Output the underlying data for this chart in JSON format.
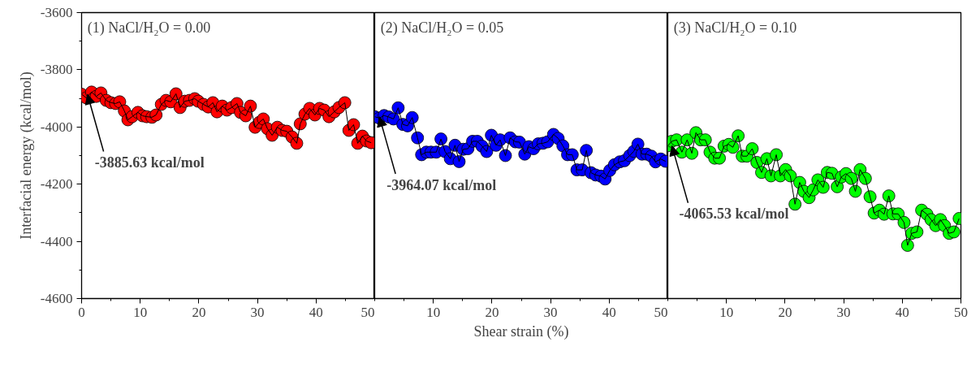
{
  "chart_data": [
    {
      "type": "line",
      "marker": "circle",
      "line_style": "solid",
      "title": "(1) NaCl/H₂O = 0.00",
      "ylabel": "Interfacial energy (kcal/mol)",
      "xlim": [
        0,
        50
      ],
      "xticks": [
        0,
        {
          "value": 5,
          "label": null
        },
        10,
        {
          "value": 15,
          "label": null
        },
        20,
        {
          "value": 25,
          "label": null
        },
        30,
        {
          "value": 35,
          "label": null
        },
        40,
        {
          "value": 45,
          "label": null
        },
        50
      ],
      "ylim": [
        -4600,
        -3600
      ],
      "yticks": [
        -4600,
        {
          "value": -4500,
          "label": null
        },
        -4400,
        {
          "value": -4300,
          "label": null
        },
        -4200,
        {
          "value": -4100,
          "label": null
        },
        -4000,
        {
          "value": -3900,
          "label": null
        },
        -3800,
        {
          "value": -3700,
          "label": null
        },
        -3600
      ],
      "series": [
        {
          "color": "#ff0000",
          "x": [
            0,
            0.8,
            1.7,
            2.5,
            3.3,
            4.2,
            5.0,
            5.8,
            6.5,
            7.3,
            7.9,
            8.6,
            9.6,
            10.4,
            11.1,
            12.0,
            12.7,
            13.6,
            14.4,
            15.2,
            16.1,
            16.8,
            17.6,
            18.4,
            19.3,
            19.9,
            20.8,
            21.6,
            22.4,
            23.1,
            24.0,
            24.8,
            25.6,
            26.5,
            27.1,
            28.0,
            28.8,
            29.6,
            30.3,
            31.0,
            31.7,
            32.5,
            33.4,
            34.2,
            35.0,
            35.9,
            36.7,
            37.3,
            38.1,
            38.9,
            39.8,
            40.6,
            41.4,
            42.2,
            43.1,
            43.9,
            44.9,
            45.6,
            46.4,
            47.1,
            47.9,
            48.6,
            49.4
          ],
          "values": [
            -3885.63,
            -3898,
            -3878,
            -3893,
            -3881,
            -3907,
            -3915,
            -3918,
            -3912,
            -3944,
            -3975,
            -3964,
            -3949,
            -3961,
            -3964,
            -3966,
            -3958,
            -3921,
            -3907,
            -3912,
            -3884,
            -3932,
            -3910,
            -3907,
            -3901,
            -3910,
            -3921,
            -3930,
            -3915,
            -3947,
            -3927,
            -3941,
            -3932,
            -3918,
            -3949,
            -3961,
            -3927,
            -4001,
            -3984,
            -3972,
            -4006,
            -4029,
            -4001,
            -4012,
            -4015,
            -4035,
            -4057,
            -3989,
            -3955,
            -3935,
            -3958,
            -3935,
            -3941,
            -3964,
            -3947,
            -3932,
            -3915,
            -4012,
            -3992,
            -4057,
            -4032,
            -4049,
            -4055
          ]
        }
      ],
      "annotations": [
        {
          "text": "-3885.63 kcal/mol",
          "x": 1,
          "y": -3885.63
        }
      ]
    },
    {
      "type": "line",
      "marker": "circle",
      "line_style": "solid",
      "title": "(2) NaCl/H₂O = 0.05",
      "xlabel": "Shear strain (%)",
      "tick_labels": "x",
      "xlim": [
        0,
        50
      ],
      "xticks": [
        {
          "value": 0,
          "label": null
        },
        {
          "value": 5,
          "label": null
        },
        10,
        {
          "value": 15,
          "label": null
        },
        20,
        {
          "value": 25,
          "label": null
        },
        30,
        {
          "value": 35,
          "label": null
        },
        40,
        {
          "value": 45,
          "label": null
        },
        50
      ],
      "ylim": [
        -4600,
        -3600
      ],
      "series": [
        {
          "color": "#0000ff",
          "x": [
            0,
            0.8,
            1.6,
            2.4,
            3.2,
            4.0,
            4.8,
            5.6,
            6.4,
            7.3,
            8.0,
            8.8,
            9.6,
            10.5,
            11.3,
            12.0,
            12.9,
            13.7,
            14.4,
            15.1,
            15.9,
            16.7,
            17.5,
            18.3,
            19.1,
            19.9,
            20.7,
            21.4,
            22.3,
            23.1,
            24.0,
            24.7,
            25.6,
            26.3,
            27.1,
            27.9,
            28.7,
            29.5,
            30.5,
            31.3,
            32.1,
            32.9,
            33.7,
            34.5,
            35.4,
            36.1,
            36.9,
            37.7,
            38.6,
            39.3,
            40.1,
            40.9,
            41.8,
            42.6,
            43.5,
            44.2,
            44.9,
            45.6,
            46.4,
            47.2,
            47.9,
            48.8,
            49.6
          ],
          "values": [
            -3964.07,
            -3969,
            -3960,
            -3965,
            -3972,
            -3933,
            -3991,
            -3996,
            -3967,
            -4038,
            -4097,
            -4088,
            -4088,
            -4088,
            -4042,
            -4086,
            -4111,
            -4064,
            -4121,
            -4078,
            -4076,
            -4050,
            -4050,
            -4067,
            -4086,
            -4029,
            -4064,
            -4045,
            -4100,
            -4038,
            -4052,
            -4053,
            -4095,
            -4069,
            -4076,
            -4059,
            -4057,
            -4052,
            -4026,
            -4040,
            -4066,
            -4097,
            -4097,
            -4150,
            -4150,
            -4082,
            -4160,
            -4168,
            -4172,
            -4182,
            -4152,
            -4132,
            -4122,
            -4118,
            -4100,
            -4085,
            -4060,
            -4095,
            -4095,
            -4102,
            -4122,
            -4112,
            -4120
          ]
        }
      ],
      "annotations": [
        {
          "text": "-3964.07 kcal/mol",
          "x": 0.8,
          "y": -3964.07
        }
      ]
    },
    {
      "type": "line",
      "marker": "circle",
      "line_style": "solid",
      "title": "(3) NaCl/H₂O = 0.10",
      "tick_labels": "x",
      "xlim": [
        0,
        50
      ],
      "xticks": [
        {
          "value": 0,
          "label": null
        },
        {
          "value": 5,
          "label": null
        },
        10,
        {
          "value": 15,
          "label": null
        },
        20,
        {
          "value": 25,
          "label": null
        },
        30,
        {
          "value": 35,
          "label": null
        },
        40,
        {
          "value": 45,
          "label": null
        },
        50
      ],
      "ylim": [
        -4600,
        -3600
      ],
      "series": [
        {
          "color": "#00ff00",
          "x": [
            0,
            0.7,
            1.5,
            2.4,
            3.3,
            4.1,
            4.8,
            5.6,
            6.4,
            7.2,
            8.0,
            8.8,
            9.6,
            10.4,
            11.1,
            12.0,
            12.7,
            13.5,
            14.4,
            15.2,
            16.0,
            16.9,
            17.6,
            18.5,
            19.2,
            20.1,
            20.9,
            21.7,
            22.5,
            23.2,
            24.1,
            24.8,
            25.6,
            26.5,
            27.2,
            28.0,
            28.9,
            29.6,
            30.4,
            31.3,
            32.0,
            32.8,
            33.7,
            34.5,
            35.2,
            36.1,
            36.9,
            37.7,
            38.4,
            39.3,
            40.3,
            40.9,
            41.6,
            42.5,
            43.3,
            44.2,
            44.9,
            45.7,
            46.5,
            47.2,
            48.0,
            48.8,
            49.7
          ],
          "values": [
            -4065.53,
            -4050,
            -4045,
            -4088,
            -4045,
            -4092,
            -4020,
            -4045,
            -4045,
            -4088,
            -4109,
            -4109,
            -4067,
            -4061,
            -4071,
            -4031,
            -4102,
            -4102,
            -4076,
            -4124,
            -4159,
            -4111,
            -4171,
            -4097,
            -4171,
            -4149,
            -4171,
            -4270,
            -4194,
            -4225,
            -4247,
            -4220,
            -4185,
            -4211,
            -4159,
            -4162,
            -4209,
            -4175,
            -4163,
            -4180,
            -4225,
            -4149,
            -4180,
            -4244,
            -4301,
            -4291,
            -4305,
            -4241,
            -4304,
            -4304,
            -4334,
            -4414,
            -4372,
            -4367,
            -4291,
            -4305,
            -4324,
            -4345,
            -4324,
            -4345,
            -4372,
            -4367,
            -4320
          ]
        }
      ],
      "annotations": [
        {
          "text": "-4065.53 kcal/mol",
          "x": 0.7,
          "y": -4065.53
        }
      ]
    }
  ]
}
